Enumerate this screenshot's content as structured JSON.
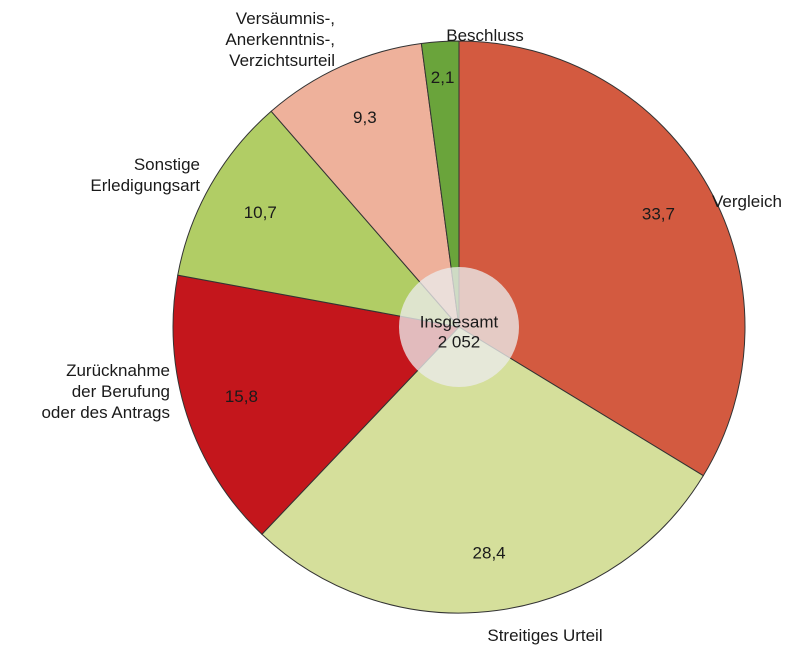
{
  "chart_data": {
    "type": "pie",
    "categories": [
      [
        "Vergleich"
      ],
      [
        "Streitiges Urteil"
      ],
      [
        "Zurücknahme",
        "der Berufung",
        "oder des Antrags"
      ],
      [
        "Sonstige",
        "Erledigungsart"
      ],
      [
        "Versäumnis-,",
        "Anerkenntnis-,",
        "Verzichtsurteil"
      ],
      [
        "Beschluss"
      ]
    ],
    "values": [
      33.7,
      28.4,
      15.8,
      10.7,
      9.3,
      2.1
    ],
    "value_labels": [
      "33,7",
      "28,4",
      "15,8",
      "10,7",
      "9,3",
      "2,1"
    ],
    "colors": [
      "#d35a40",
      "#d5df9b",
      "#c4161c",
      "#b1cd65",
      "#eeb19b",
      "#6aa43b"
    ],
    "value_label_colors": [
      "#1a1a1a",
      "#1a1a1a",
      "#ffffff",
      "#1a1a1a",
      "#1a1a1a",
      "#1a1a1a"
    ],
    "center_label": [
      "Insgesamt",
      "2 052"
    ]
  }
}
